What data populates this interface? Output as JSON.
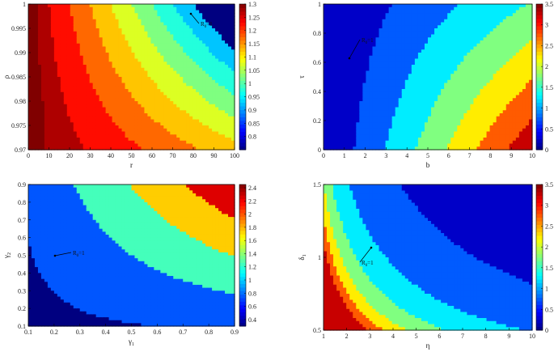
{
  "chart_data": [
    {
      "type": "heatmap",
      "subtype": "filled-contour",
      "xlabel": "r",
      "ylabel": "ρ",
      "xlim": [
        0,
        100
      ],
      "ylim": [
        0.97,
        1
      ],
      "xticks": [
        "0",
        "10",
        "20",
        "30",
        "40",
        "50",
        "60",
        "70",
        "80",
        "90",
        "100"
      ],
      "yticks": [
        "0.97",
        "0.975",
        "0.98",
        "0.985",
        "0.99",
        "0.995",
        "1"
      ],
      "colorbar": {
        "range": [
          0.75,
          1.3
        ],
        "ticks": [
          "0.8",
          "0.85",
          "0.9",
          "0.95",
          "1",
          "1.05",
          "1.1",
          "1.15",
          "1.2",
          "1.25",
          "1.3"
        ]
      },
      "contour_levels": [
        1.3,
        1.25,
        1.2,
        1.15,
        1.1,
        1.05,
        1.0,
        0.95,
        0.9
      ],
      "annotation": {
        "text": "R",
        "sub": "0",
        "suffix": "=1"
      },
      "colormap": "jet",
      "grid": false
    },
    {
      "type": "heatmap",
      "subtype": "filled-contour",
      "xlabel": "b",
      "ylabel": "τ",
      "xlim": [
        0,
        10
      ],
      "ylim": [
        0,
        1
      ],
      "xticks": [
        "0",
        "1",
        "2",
        "3",
        "4",
        "5",
        "6",
        "7",
        "8",
        "9",
        "10"
      ],
      "yticks": [
        "0",
        "0.2",
        "0.4",
        "0.6",
        "0.8",
        "1"
      ],
      "colorbar": {
        "range": [
          0,
          3.5
        ],
        "ticks": [
          "0",
          "0.5",
          "1",
          "1.5",
          "2",
          "2.5",
          "3",
          "3.5"
        ]
      },
      "contour_levels": [
        0.5,
        1.0,
        1.5,
        2.0,
        2.5,
        3.0
      ],
      "annotation": {
        "text": "R",
        "sub": "0",
        "suffix": "=1"
      },
      "colormap": "jet",
      "grid": false
    },
    {
      "type": "heatmap",
      "subtype": "filled-contour",
      "xlabel": "γ",
      "xlabel_sub": "1",
      "ylabel": "γ",
      "ylabel_sub": "2",
      "xlim": [
        0.1,
        0.9
      ],
      "ylim": [
        0.1,
        0.9
      ],
      "xticks": [
        "0.1",
        "0.2",
        "0.3",
        "0.4",
        "0.5",
        "0.6",
        "0.7",
        "0.8",
        "0.9"
      ],
      "yticks": [
        "0.1",
        "0.2",
        "0.3",
        "0.4",
        "0.5",
        "0.6",
        "0.7",
        "0.8",
        "0.9"
      ],
      "colorbar": {
        "range": [
          0.3,
          2.45
        ],
        "ticks": [
          "0.4",
          "0.6",
          "0.8",
          "1",
          "1.2",
          "1.4",
          "1.6",
          "1.8",
          "2",
          "2.2",
          "2.4"
        ]
      },
      "contour_levels": [
        0.5,
        1.0,
        1.5,
        2.0
      ],
      "annotation": {
        "text": "R",
        "sub": "0",
        "suffix": "=1"
      },
      "colormap": "jet",
      "grid": false
    },
    {
      "type": "heatmap",
      "subtype": "filled-contour",
      "xlabel": "η",
      "ylabel": "δ",
      "ylabel_sub": "1",
      "xlim": [
        1,
        10
      ],
      "ylim": [
        0.5,
        1.5
      ],
      "xticks": [
        "1",
        "2",
        "3",
        "4",
        "5",
        "6",
        "7",
        "8",
        "9",
        "10"
      ],
      "yticks": [
        "0.5",
        "1",
        "1.5"
      ],
      "colorbar": {
        "range": [
          0,
          3.5
        ],
        "ticks": [
          "0",
          "0.5",
          "1",
          "1.5",
          "2",
          "2.5",
          "3",
          "3.5"
        ]
      },
      "contour_levels": [
        0.5,
        1.0,
        1.5,
        2.0,
        2.5,
        3.0
      ],
      "annotation": {
        "text": "R",
        "sub": "0",
        "suffix": "=1"
      },
      "colormap": "jet",
      "grid": false
    }
  ]
}
